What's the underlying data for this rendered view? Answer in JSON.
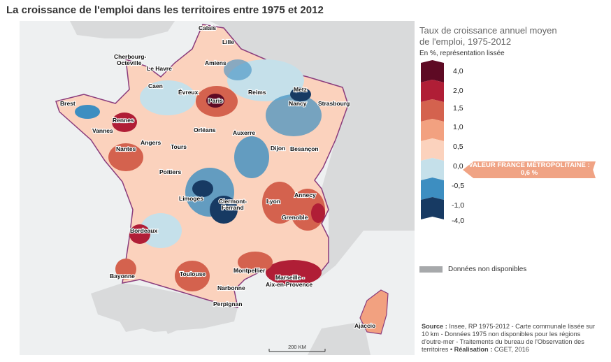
{
  "title": "La croissance de l'emploi dans les territoires entre 1975 et 2012",
  "legend": {
    "title_line1": "Taux de croissance annuel moyen",
    "title_line2": "de l'emploi, 1975-2012",
    "subtitle": "En %, représentation lissée",
    "classes": [
      {
        "label": "4,0",
        "color": "#5e0a24"
      },
      {
        "label": "2,0",
        "color": "#b01e36"
      },
      {
        "label": "1,5",
        "color": "#d4624e"
      },
      {
        "label": "1,0",
        "color": "#f2a180"
      },
      {
        "label": "0,5",
        "color": "#fbd2bd"
      },
      {
        "label": "0,0",
        "color": "#c5e0ea"
      },
      {
        "label": "-0,5",
        "color": "#3d8ec1"
      },
      {
        "label": "-1,0",
        "color": "#173a63"
      }
    ],
    "bottom_label": "-4,0",
    "france_value_label": "VALEUR FRANCE MÉTROPOLITAINE :",
    "france_value": "0,6 %",
    "no_data": "Données non disponibles",
    "no_data_color": "#a7a9ab"
  },
  "cities": [
    "Calais",
    "Lille",
    "Cherbourg-",
    "Octeville",
    "Le Havre",
    "Amiens",
    "Caen",
    "Évreux",
    "Reims",
    "Metz",
    "Brest",
    "Paris",
    "Nancy",
    "Strasbourg",
    "Rennes",
    "Vannes",
    "Orléans",
    "Auxerre",
    "Angers",
    "Nantes",
    "Tours",
    "Dijon",
    "Besançon",
    "Poitiers",
    "Annecy",
    "Lyon",
    "Limoges",
    "Clermont-",
    "Ferrand",
    "Grenoble",
    "Bordeaux",
    "Montpellier",
    "Bayonne",
    "Toulouse",
    "Marseille -",
    "Aix-en-Provence",
    "Narbonne",
    "Perpignan",
    "Ajaccio"
  ],
  "scale": "200 KM",
  "source": {
    "label": "Source :",
    "text": " Insee, RP 1975-2012 - Carte communale lissée sur 10 km - Données 1975 non disponibles pour les régions d'outre-mer - Traitements du bureau de l'Observation des territoires • ",
    "credit_label": "Réalisation :",
    "credit": " CGET, 2016"
  }
}
